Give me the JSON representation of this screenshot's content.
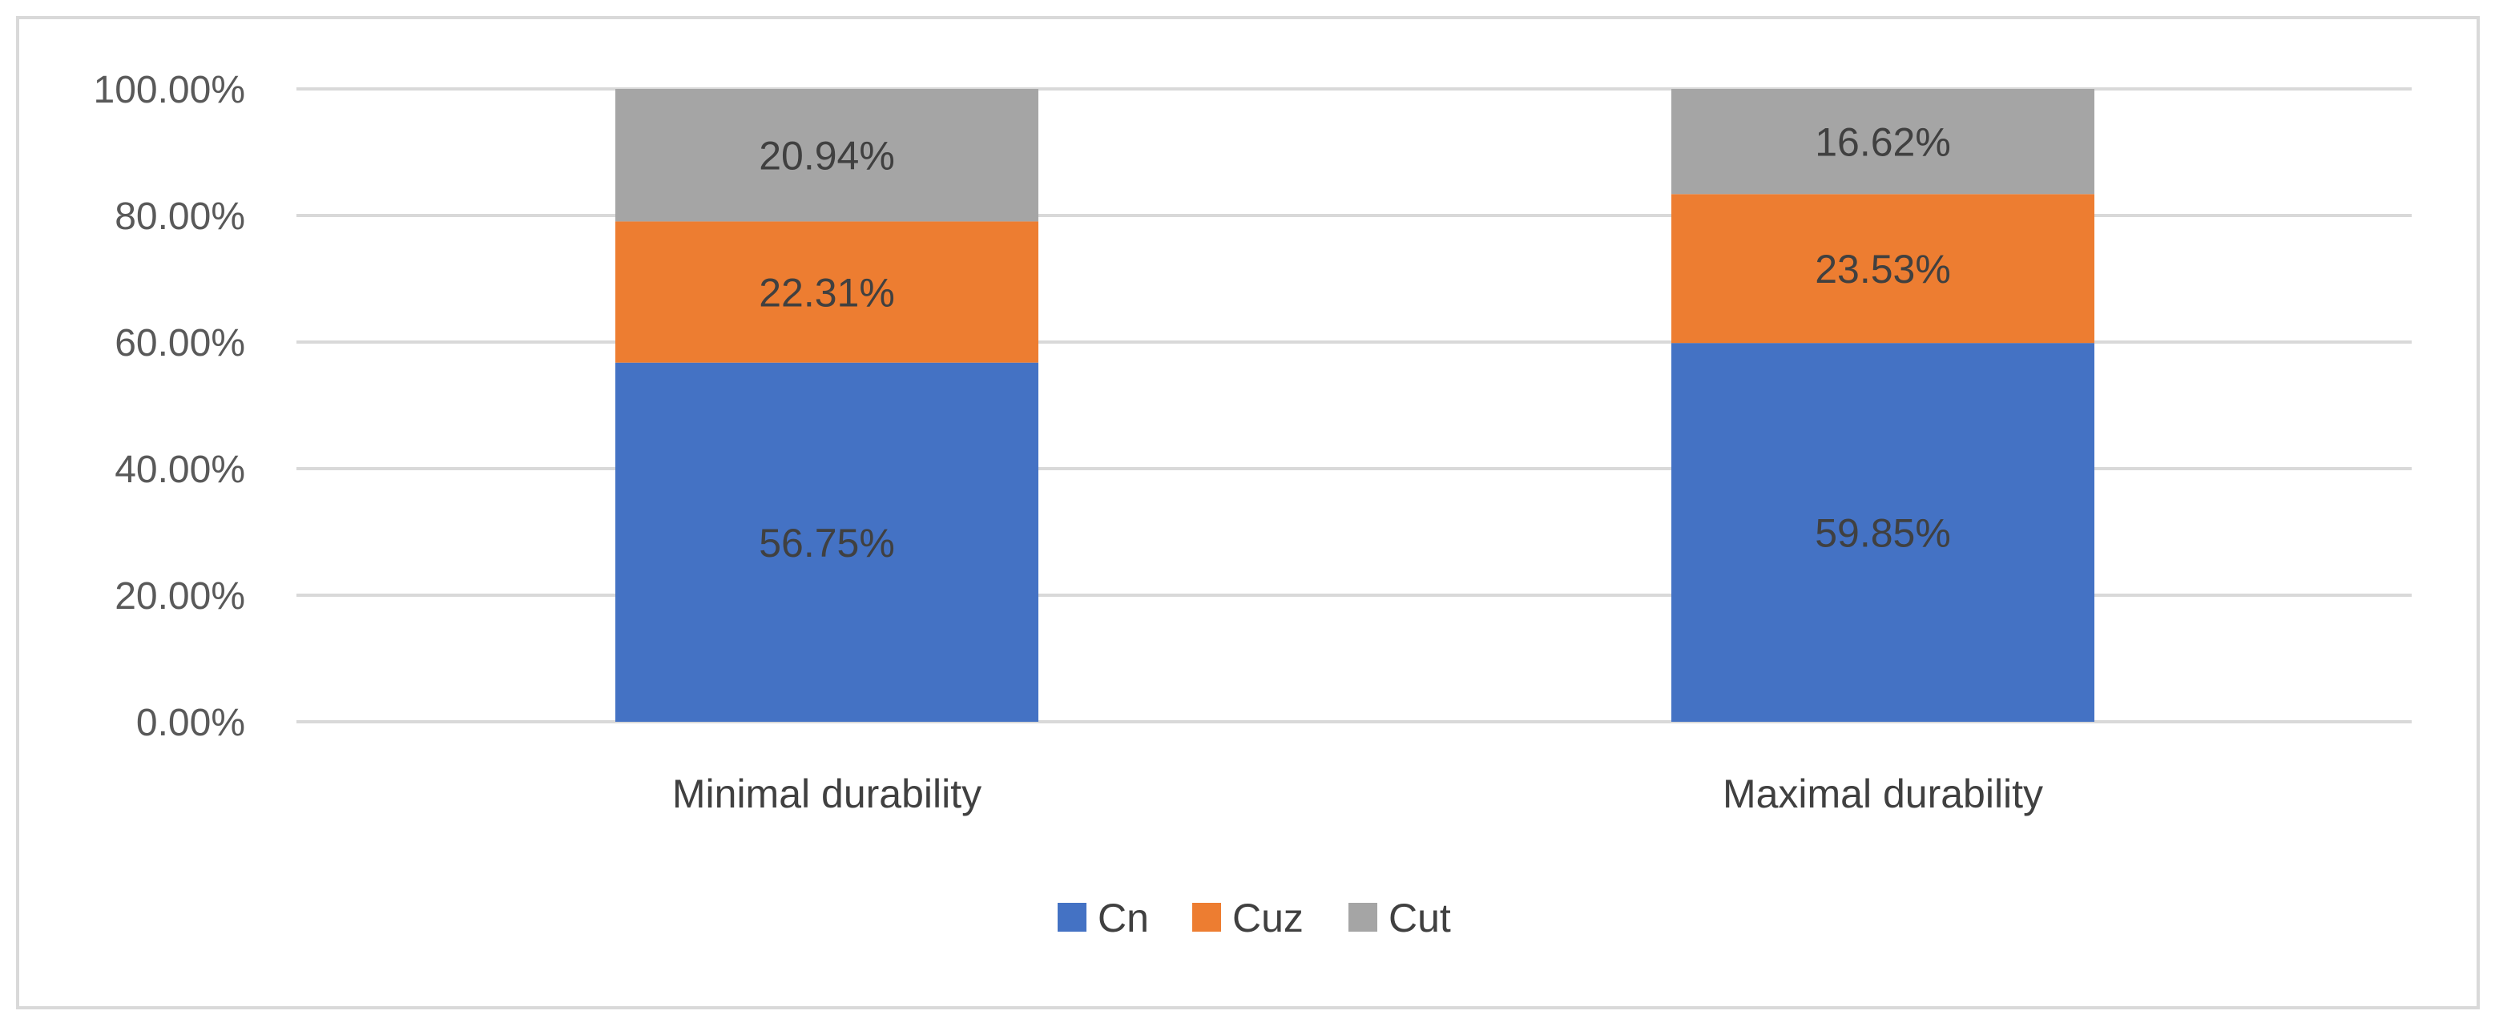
{
  "chart_data": {
    "type": "bar",
    "stacked": true,
    "title": "",
    "xlabel": "",
    "ylabel": "",
    "ylim": [
      0,
      100
    ],
    "yticks": [
      0,
      20,
      40,
      60,
      80,
      100
    ],
    "ytick_labels": [
      "0.00%",
      "20.00%",
      "40.00%",
      "60.00%",
      "80.00%",
      "100.00%"
    ],
    "categories": [
      "Minimal durability",
      "Maximal durability"
    ],
    "series": [
      {
        "name": "Cn",
        "color": "#4472c4",
        "values": [
          56.75,
          59.85
        ],
        "labels": [
          "56.75%",
          "59.85%"
        ]
      },
      {
        "name": "Cuz",
        "color": "#ed7d31",
        "values": [
          22.31,
          23.53
        ],
        "labels": [
          "22.31%",
          "23.53%"
        ]
      },
      {
        "name": "Cut",
        "color": "#a5a5a5",
        "values": [
          20.94,
          16.62
        ],
        "labels": [
          "20.94%",
          "16.62%"
        ]
      }
    ],
    "grid": true,
    "legend": "bottom-center"
  }
}
